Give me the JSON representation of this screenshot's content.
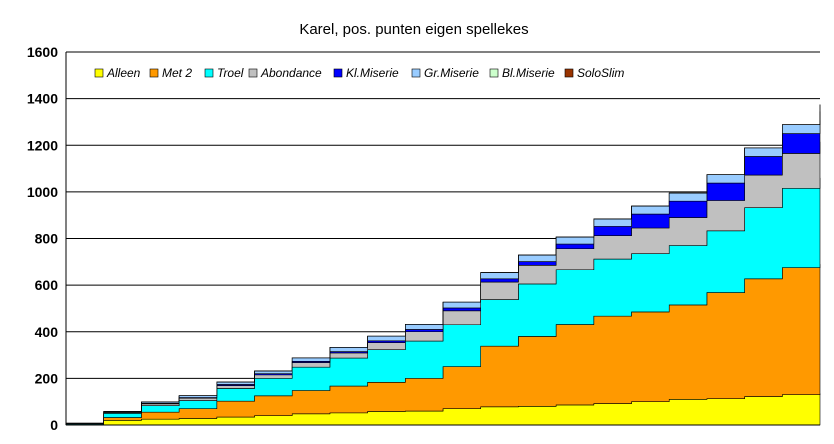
{
  "chart_data": {
    "type": "area",
    "title": "Karel, pos. punten eigen spellekes",
    "xlabel": "",
    "ylabel": "",
    "ylim": [
      0,
      1600
    ],
    "yticks": [
      0,
      200,
      400,
      600,
      800,
      1000,
      1200,
      1400,
      1600
    ],
    "grid": true,
    "legend_position": "top",
    "x": [
      0,
      5,
      10,
      15,
      20,
      25,
      30,
      35,
      40,
      45,
      50,
      55,
      60,
      65,
      70,
      75,
      80,
      85,
      90,
      95,
      100
    ],
    "series": [
      {
        "name": "Alleen",
        "color": "#ffff00",
        "values": [
          0,
          20,
          25,
          28,
          34,
          40,
          48,
          52,
          58,
          60,
          70,
          78,
          80,
          86,
          92,
          100,
          110,
          113,
          122,
          130,
          135
        ]
      },
      {
        "name": "Met 2",
        "color": "#ff9900",
        "values": [
          2,
          12,
          30,
          42,
          68,
          85,
          100,
          115,
          125,
          140,
          180,
          260,
          300,
          345,
          375,
          385,
          405,
          455,
          505,
          545,
          555
        ]
      },
      {
        "name": "Troel",
        "color": "#00ffff",
        "values": [
          3,
          18,
          28,
          35,
          55,
          75,
          100,
          120,
          140,
          160,
          180,
          200,
          225,
          235,
          245,
          250,
          255,
          265,
          305,
          340,
          370
        ]
      },
      {
        "name": "Abondance",
        "color": "#c0c0c0",
        "values": [
          1,
          4,
          8,
          10,
          12,
          15,
          20,
          22,
          30,
          40,
          60,
          75,
          80,
          90,
          100,
          110,
          120,
          130,
          140,
          150,
          155
        ]
      },
      {
        "name": "Kl.Miserie",
        "color": "#0000ff",
        "values": [
          0,
          1,
          2,
          3,
          5,
          5,
          5,
          6,
          8,
          10,
          12,
          14,
          16,
          20,
          40,
          60,
          70,
          75,
          80,
          85,
          92
        ]
      },
      {
        "name": "Gr.Miserie",
        "color": "#99ccff",
        "values": [
          2,
          3,
          6,
          8,
          10,
          12,
          15,
          18,
          20,
          22,
          25,
          27,
          28,
          30,
          32,
          34,
          35,
          36,
          37,
          38,
          38
        ]
      },
      {
        "name": "Bl.Miserie",
        "color": "#ccffcc",
        "values": [
          0,
          0,
          0,
          0,
          0,
          0,
          0,
          0,
          0,
          0,
          0,
          0,
          0,
          0,
          0,
          0,
          0,
          0,
          0,
          0,
          30
        ]
      },
      {
        "name": "SoloSlim",
        "color": "#993300",
        "values": [
          0,
          0,
          0,
          0,
          0,
          0,
          0,
          0,
          0,
          0,
          0,
          0,
          0,
          0,
          0,
          0,
          0,
          0,
          0,
          0,
          0
        ]
      }
    ]
  }
}
